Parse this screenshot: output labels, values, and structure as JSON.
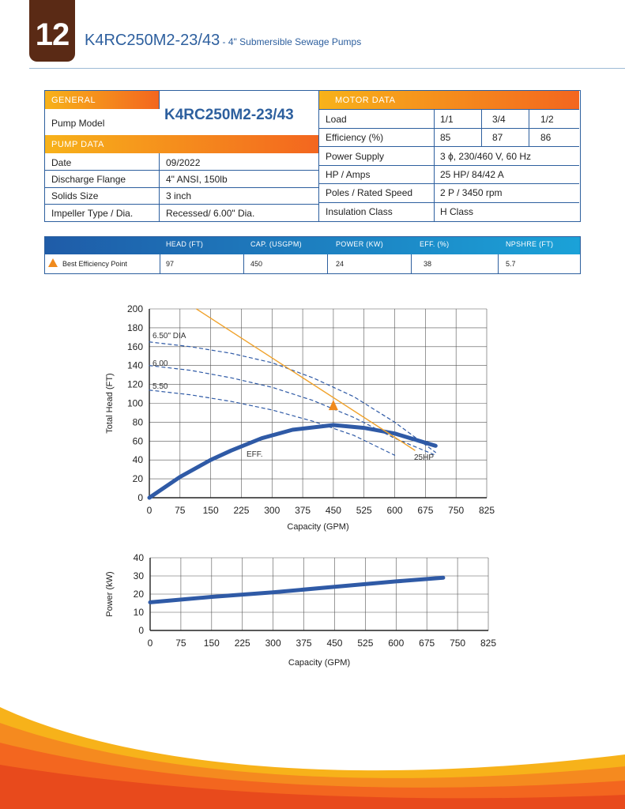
{
  "header": {
    "page_number": "12",
    "model": "K4RC250M2-23/43",
    "subtitle": " - 4\" Submersible Sewage Pumps"
  },
  "general": {
    "section_label": "GENERAL",
    "pump_model_label": "Pump Model",
    "pump_model_value": "K4RC250M2-23/43"
  },
  "pump_data": {
    "section_label": "PUMP DATA",
    "rows": [
      {
        "label": "Date",
        "value": "09/2022"
      },
      {
        "label": "Discharge Flange",
        "value": "4\" ANSI, 150lb"
      },
      {
        "label": "Solids Size",
        "value": "3 inch"
      },
      {
        "label": "Impeller Type / Dia.",
        "value": "Recessed/ 6.00\" Dia."
      }
    ]
  },
  "motor_data": {
    "section_label": "MOTOR DATA",
    "load_label": "Load",
    "loads": [
      "1/1",
      "3/4",
      "1/2"
    ],
    "efficiency_label": "Efficiency (%)",
    "efficiencies": [
      "85",
      "87",
      "86"
    ],
    "rows": [
      {
        "label": "Power Supply",
        "value": "3 ϕ, 230/460 V, 60 Hz"
      },
      {
        "label": "HP / Amps",
        "value": "25 HP/ 84/42 A"
      },
      {
        "label": "Poles / Rated Speed",
        "value": "2 P / 3450 rpm"
      },
      {
        "label": "Insulation Class",
        "value": "H Class"
      }
    ]
  },
  "bep": {
    "headers": [
      "HEAD (FT)",
      "CAP. (USGPM)",
      "POWER (KW)",
      "EFF. (%)",
      "NPSHRE (FT)"
    ],
    "row_label": "Best Efficiency Point",
    "values": [
      "97",
      "450",
      "24",
      "38",
      "5.7"
    ]
  },
  "colors": {
    "brand_blue": "#2d5f9e",
    "orange": "#f3661f",
    "badge_brown": "#5a2a15"
  },
  "chart_data": [
    {
      "type": "line",
      "xlabel": "Capacity (GPM)",
      "ylabel": "Total Head (FT)",
      "xlim": [
        0,
        825
      ],
      "ylim": [
        0,
        200
      ],
      "xticks": [
        0,
        75,
        150,
        225,
        300,
        375,
        450,
        525,
        600,
        675,
        750,
        825
      ],
      "yticks": [
        0,
        20,
        40,
        60,
        80,
        100,
        120,
        140,
        160,
        180,
        200
      ],
      "grid": true,
      "series": [
        {
          "name": "6.50\" DIA",
          "style": "dashed",
          "x": [
            0,
            100,
            200,
            300,
            400,
            500,
            600,
            700
          ],
          "y": [
            165,
            160,
            153,
            143,
            127,
            107,
            80,
            48
          ]
        },
        {
          "name": "6.00",
          "style": "dashed",
          "x": [
            0,
            100,
            200,
            300,
            400,
            500,
            600,
            700
          ],
          "y": [
            140,
            135,
            127,
            117,
            103,
            85,
            63,
            45
          ]
        },
        {
          "name": "5.50",
          "style": "dashed",
          "x": [
            0,
            100,
            200,
            300,
            400,
            500,
            600
          ],
          "y": [
            114,
            109,
            102,
            93,
            81,
            66,
            45
          ]
        },
        {
          "name": "EFF.",
          "style": "thick",
          "x": [
            0,
            75,
            150,
            200,
            275,
            350,
            450,
            525,
            600,
            700
          ],
          "y": [
            0,
            22,
            40,
            50,
            63,
            72,
            77,
            74,
            68,
            55
          ]
        },
        {
          "name": "25HP",
          "style": "limit",
          "x": [
            115,
            650
          ],
          "y": [
            200,
            50
          ]
        }
      ],
      "annotations": [
        {
          "text": "6.50\" DIA"
        },
        {
          "text": "6.00"
        },
        {
          "text": "5.50"
        },
        {
          "text": "EFF."
        },
        {
          "text": "25HP"
        }
      ],
      "bep_marker": {
        "x": 450,
        "y": 97
      }
    },
    {
      "type": "line",
      "xlabel": "Capacity (GPM)",
      "ylabel": "Power (kW)",
      "xlim": [
        0,
        825
      ],
      "ylim": [
        0,
        40
      ],
      "xticks": [
        0,
        75,
        150,
        225,
        300,
        375,
        450,
        525,
        600,
        675,
        750,
        825
      ],
      "yticks": [
        0,
        10,
        20,
        30,
        40
      ],
      "grid": true,
      "series": [
        {
          "name": "",
          "style": "thick",
          "x": [
            0,
            150,
            300,
            450,
            600,
            715
          ],
          "y": [
            15.5,
            18.5,
            21,
            24,
            27,
            29
          ]
        }
      ]
    }
  ]
}
